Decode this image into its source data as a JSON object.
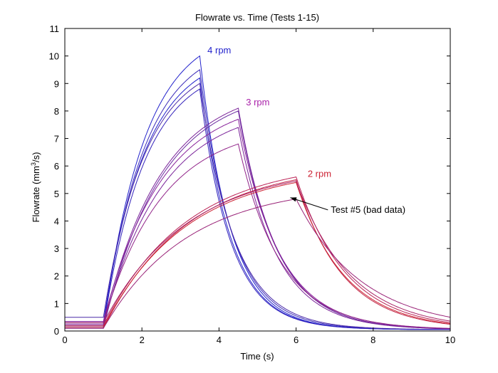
{
  "chart_data": {
    "type": "line",
    "title": "Flowrate vs. Time (Tests 1-15)",
    "xlabel": "Time (s)",
    "ylabel_main": "Flowrate (mm",
    "ylabel_sup": "3",
    "ylabel_tail": "/s)",
    "xlim": [
      0,
      10
    ],
    "ylim": [
      0,
      11
    ],
    "xticks": [
      0,
      2,
      4,
      6,
      8,
      10
    ],
    "yticks": [
      0,
      1,
      2,
      3,
      4,
      5,
      6,
      7,
      8,
      9,
      10,
      11
    ],
    "grid": false,
    "annotations": [
      {
        "text": "4 rpm",
        "x": 3.7,
        "y": 10.1,
        "color": "#2222cc"
      },
      {
        "text": "3 rpm",
        "x": 4.7,
        "y": 8.2,
        "color": "#aa22aa"
      },
      {
        "text": "2 rpm",
        "x": 6.3,
        "y": 5.6,
        "color": "#cc2233"
      },
      {
        "text": "Test #5 (bad data)",
        "x": 6.9,
        "y": 4.3,
        "color": "#000000",
        "arrow_to": [
          5.85,
          4.85
        ]
      }
    ],
    "series": [
      {
        "group": "4 rpm",
        "color": "#2222cc",
        "t_on": 1.0,
        "t_off": 3.5,
        "peak": 10.0,
        "baseline": 0.1,
        "tau_fall": 0.8
      },
      {
        "group": "4 rpm",
        "color": "#3a2ab8",
        "t_on": 1.0,
        "t_off": 3.5,
        "peak": 9.5,
        "baseline": 0.2,
        "tau_fall": 0.85
      },
      {
        "group": "4 rpm",
        "color": "#2222cc",
        "t_on": 1.0,
        "t_off": 3.5,
        "peak": 9.2,
        "baseline": 0.3,
        "tau_fall": 0.8
      },
      {
        "group": "4 rpm",
        "color": "#4a2aa8",
        "t_on": 1.0,
        "t_off": 3.5,
        "peak": 9.0,
        "baseline": 0.5,
        "tau_fall": 0.9
      },
      {
        "group": "4 rpm",
        "color": "#3322bb",
        "t_on": 1.0,
        "t_off": 3.5,
        "peak": 8.8,
        "baseline": 0.15,
        "tau_fall": 0.8
      },
      {
        "group": "3 rpm",
        "color": "#7a2299",
        "t_on": 1.0,
        "t_off": 4.5,
        "peak": 8.1,
        "baseline": 0.25,
        "tau_fall": 1.0
      },
      {
        "group": "3 rpm",
        "color": "#6a2aa0",
        "t_on": 1.0,
        "t_off": 4.5,
        "peak": 8.0,
        "baseline": 0.1,
        "tau_fall": 1.0
      },
      {
        "group": "3 rpm",
        "color": "#88229a",
        "t_on": 1.0,
        "t_off": 4.5,
        "peak": 7.7,
        "baseline": 0.35,
        "tau_fall": 1.05
      },
      {
        "group": "3 rpm",
        "color": "#7a2299",
        "t_on": 1.0,
        "t_off": 4.5,
        "peak": 7.4,
        "baseline": 0.2,
        "tau_fall": 1.0
      },
      {
        "group": "3 rpm",
        "color": "#902288",
        "t_on": 1.0,
        "t_off": 4.5,
        "peak": 6.8,
        "baseline": 0.3,
        "tau_fall": 1.1
      },
      {
        "group": "2 rpm",
        "color": "#bb2255",
        "t_on": 1.0,
        "t_off": 6.0,
        "peak": 5.6,
        "baseline": 0.2,
        "tau_fall": 1.3
      },
      {
        "group": "2 rpm",
        "color": "#c02244",
        "t_on": 1.0,
        "t_off": 6.0,
        "peak": 5.5,
        "baseline": 0.1,
        "tau_fall": 1.2
      },
      {
        "group": "2 rpm",
        "color": "#aa2266",
        "t_on": 1.0,
        "t_off": 6.0,
        "peak": 5.45,
        "baseline": 0.3,
        "tau_fall": 1.4
      },
      {
        "group": "2 rpm",
        "color": "#cc2233",
        "t_on": 1.0,
        "t_off": 6.0,
        "peak": 5.4,
        "baseline": 0.15,
        "tau_fall": 1.25
      },
      {
        "group": "2 rpm",
        "color": "#992277",
        "t_on": 1.0,
        "t_off": 6.0,
        "peak": 4.8,
        "baseline": 0.1,
        "tau_fall": 1.7
      }
    ]
  }
}
